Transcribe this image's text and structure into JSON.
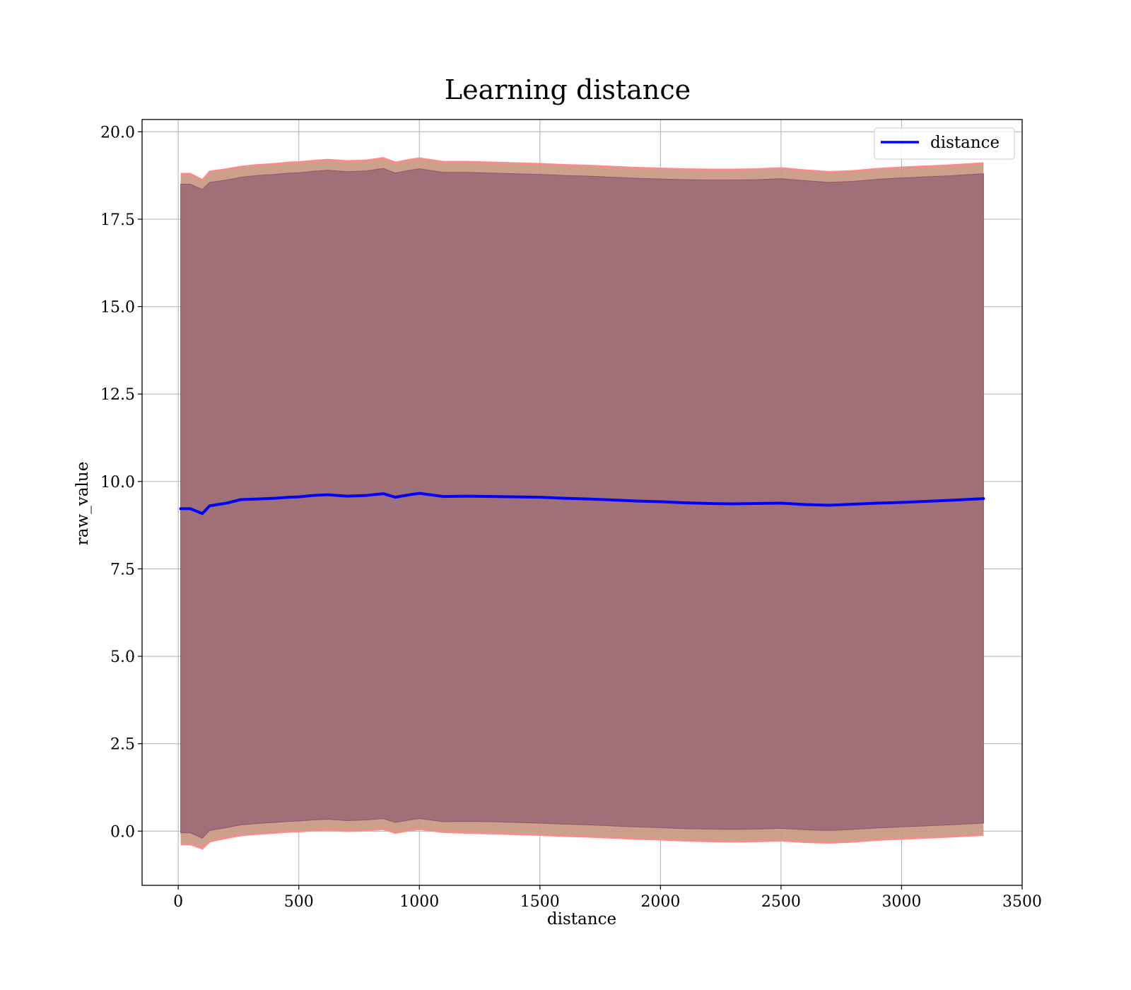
{
  "chart_data": {
    "type": "line",
    "title": "Learning distance",
    "xlabel": "distance",
    "ylabel": "raw_value",
    "xlim": [
      -150,
      3500
    ],
    "ylim": [
      -1.55,
      20.35
    ],
    "xticks": [
      0,
      500,
      1000,
      1500,
      2000,
      2500,
      3000,
      3500
    ],
    "xtick_labels": [
      "0",
      "500",
      "1000",
      "1500",
      "2000",
      "2500",
      "3000",
      "3500"
    ],
    "yticks": [
      0.0,
      2.5,
      5.0,
      7.5,
      10.0,
      12.5,
      15.0,
      17.5,
      20.0
    ],
    "ytick_labels": [
      "0.0",
      "2.5",
      "5.0",
      "7.5",
      "10.0",
      "12.5",
      "15.0",
      "17.5",
      "20.0"
    ],
    "grid": true,
    "legend": {
      "position": "top-right",
      "entries": [
        "distance"
      ]
    },
    "colors": {
      "line": "#0000ff",
      "inner_band": "#a07078",
      "outer_band": "#c89880",
      "band_edge": "#ff8888"
    },
    "x": [
      10,
      50,
      100,
      130,
      200,
      260,
      330,
      400,
      460,
      500,
      560,
      620,
      700,
      780,
      850,
      900,
      960,
      1000,
      1100,
      1200,
      1300,
      1400,
      1500,
      1600,
      1700,
      1800,
      1900,
      2000,
      2100,
      2200,
      2300,
      2400,
      2500,
      2600,
      2700,
      2800,
      2900,
      3000,
      3100,
      3200,
      3340
    ],
    "series": [
      {
        "name": "distance",
        "values": [
          9.22,
          9.22,
          9.08,
          9.3,
          9.38,
          9.48,
          9.5,
          9.52,
          9.55,
          9.56,
          9.6,
          9.62,
          9.58,
          9.6,
          9.65,
          9.55,
          9.62,
          9.66,
          9.57,
          9.58,
          9.57,
          9.56,
          9.55,
          9.52,
          9.5,
          9.47,
          9.44,
          9.42,
          9.39,
          9.37,
          9.36,
          9.37,
          9.38,
          9.34,
          9.32,
          9.35,
          9.38,
          9.4,
          9.43,
          9.46,
          9.51
        ]
      },
      {
        "name": "",
        "values": [
          18.8,
          18.8,
          18.62,
          18.86,
          18.93,
          19.0,
          19.05,
          19.08,
          19.12,
          19.13,
          19.17,
          19.2,
          19.16,
          19.18,
          19.25,
          19.12,
          19.2,
          19.24,
          19.14,
          19.14,
          19.12,
          19.1,
          19.08,
          19.05,
          19.03,
          19.0,
          18.97,
          18.95,
          18.93,
          18.92,
          18.92,
          18.93,
          18.96,
          18.9,
          18.85,
          18.88,
          18.94,
          18.98,
          19.01,
          19.04,
          19.1
        ]
      },
      {
        "name": "",
        "values": [
          18.5,
          18.5,
          18.35,
          18.55,
          18.62,
          18.7,
          18.75,
          18.78,
          18.82,
          18.83,
          18.87,
          18.9,
          18.86,
          18.88,
          18.95,
          18.82,
          18.9,
          18.94,
          18.84,
          18.84,
          18.82,
          18.8,
          18.78,
          18.75,
          18.73,
          18.7,
          18.67,
          18.65,
          18.63,
          18.62,
          18.62,
          18.63,
          18.66,
          18.6,
          18.55,
          18.58,
          18.64,
          18.68,
          18.71,
          18.74,
          18.8
        ]
      },
      {
        "name": "",
        "values": [
          -0.05,
          -0.05,
          -0.2,
          0.02,
          0.1,
          0.18,
          0.22,
          0.25,
          0.28,
          0.29,
          0.32,
          0.34,
          0.3,
          0.32,
          0.36,
          0.25,
          0.32,
          0.36,
          0.27,
          0.28,
          0.27,
          0.25,
          0.23,
          0.2,
          0.18,
          0.15,
          0.12,
          0.1,
          0.07,
          0.06,
          0.05,
          0.06,
          0.08,
          0.04,
          0.02,
          0.05,
          0.09,
          0.12,
          0.15,
          0.18,
          0.23
        ]
      },
      {
        "name": "",
        "values": [
          -0.38,
          -0.38,
          -0.5,
          -0.3,
          -0.2,
          -0.12,
          -0.08,
          -0.05,
          -0.02,
          -0.01,
          0.02,
          0.04,
          0.0,
          0.02,
          0.06,
          -0.05,
          0.02,
          0.06,
          -0.03,
          -0.05,
          -0.07,
          -0.09,
          -0.11,
          -0.14,
          -0.16,
          -0.19,
          -0.22,
          -0.24,
          -0.27,
          -0.29,
          -0.3,
          -0.29,
          -0.27,
          -0.31,
          -0.33,
          -0.3,
          -0.25,
          -0.22,
          -0.19,
          -0.16,
          -0.11
        ]
      }
    ]
  }
}
